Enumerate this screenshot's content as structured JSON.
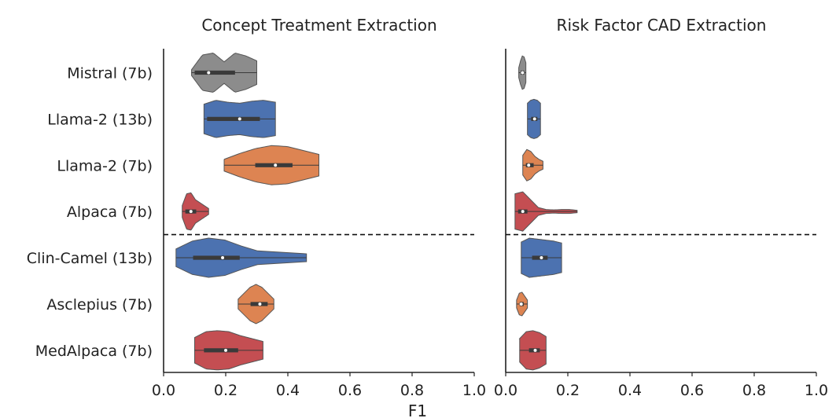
{
  "chart_data": {
    "type": "violin",
    "xlabel": "F1",
    "xlim": [
      0.0,
      1.0
    ],
    "xticks": [
      "0.0",
      "0.2",
      "0.4",
      "0.6",
      "0.8",
      "1.0"
    ],
    "categories": [
      "Mistral (7b)",
      "Llama-2 (13b)",
      "Llama-2 (7b)",
      "Alpaca (7b)",
      "Clin-Camel (13b)",
      "Asclepius (7b)",
      "MedAlpaca (7b)"
    ],
    "separator_after": "Alpaca (7b)",
    "colors": {
      "Mistral (7b)": "#8c8c8c",
      "Llama-2 (13b)": "#4c72b0",
      "Llama-2 (7b)": "#dd8452",
      "Alpaca (7b)": "#c44e52",
      "Clin-Camel (13b)": "#4c72b0",
      "Asclepius (7b)": "#dd8452",
      "MedAlpaca (7b)": "#c44e52"
    },
    "panels": [
      {
        "title": "Concept Treatment Extraction",
        "violins": [
          {
            "name": "Mistral (7b)",
            "min": 0.09,
            "max": 0.3,
            "q1": 0.1,
            "median": 0.145,
            "q3": 0.23,
            "profile": [
              0.15,
              0.9,
              1.0,
              0.55,
              1.0,
              0.85,
              0.6
            ]
          },
          {
            "name": "Llama-2 (13b)",
            "min": 0.13,
            "max": 0.36,
            "q1": 0.14,
            "median": 0.245,
            "q3": 0.31,
            "profile": [
              0.75,
              0.95,
              0.85,
              0.8,
              0.9,
              0.95,
              0.85
            ]
          },
          {
            "name": "Llama-2 (7b)",
            "min": 0.195,
            "max": 0.5,
            "q1": 0.295,
            "median": 0.36,
            "q3": 0.415,
            "profile": [
              0.3,
              0.6,
              0.85,
              1.0,
              0.95,
              0.75,
              0.55
            ]
          },
          {
            "name": "Alpaca (7b)",
            "min": 0.06,
            "max": 0.145,
            "q1": 0.07,
            "median": 0.088,
            "q3": 0.105,
            "profile": [
              0.3,
              0.9,
              0.95,
              0.6,
              0.45,
              0.3,
              0.15
            ]
          },
          {
            "name": "Clin-Camel (13b)",
            "min": 0.04,
            "max": 0.46,
            "q1": 0.095,
            "median": 0.19,
            "q3": 0.245,
            "profile": [
              0.45,
              0.85,
              1.0,
              0.9,
              0.6,
              0.35,
              0.3,
              0.25,
              0.2
            ]
          },
          {
            "name": "Asclepius (7b)",
            "min": 0.24,
            "max": 0.355,
            "q1": 0.28,
            "median": 0.31,
            "q3": 0.335,
            "profile": [
              0.25,
              0.55,
              0.85,
              1.0,
              0.85,
              0.55,
              0.25
            ]
          },
          {
            "name": "MedAlpaca (7b)",
            "min": 0.1,
            "max": 0.32,
            "q1": 0.13,
            "median": 0.2,
            "q3": 0.24,
            "profile": [
              0.65,
              0.95,
              1.0,
              0.95,
              0.75,
              0.6,
              0.45
            ]
          }
        ]
      },
      {
        "title": "Risk Factor CAD Extraction",
        "violins": [
          {
            "name": "Mistral (7b)",
            "min": 0.042,
            "max": 0.065,
            "q1": 0.048,
            "median": 0.054,
            "q3": 0.06,
            "profile": [
              0.25,
              0.6,
              0.85,
              0.8,
              0.5
            ]
          },
          {
            "name": "Llama-2 (13b)",
            "min": 0.07,
            "max": 0.112,
            "q1": 0.082,
            "median": 0.093,
            "q3": 0.102,
            "profile": [
              0.8,
              0.95,
              1.0,
              0.95,
              0.8
            ]
          },
          {
            "name": "Llama-2 (7b)",
            "min": 0.055,
            "max": 0.12,
            "q1": 0.065,
            "median": 0.074,
            "q3": 0.09,
            "profile": [
              0.5,
              0.8,
              0.7,
              0.45,
              0.3,
              0.2
            ]
          },
          {
            "name": "Alpaca (7b)",
            "min": 0.03,
            "max": 0.23,
            "q1": 0.04,
            "median": 0.055,
            "q3": 0.07,
            "profile": [
              0.9,
              1.0,
              0.6,
              0.2,
              0.1,
              0.08,
              0.1,
              0.1,
              0.06
            ]
          },
          {
            "name": "Clin-Camel (13b)",
            "min": 0.05,
            "max": 0.18,
            "q1": 0.085,
            "median": 0.115,
            "q3": 0.135,
            "profile": [
              0.8,
              1.0,
              0.95,
              0.9,
              0.85,
              0.75
            ]
          },
          {
            "name": "Asclepius (7b)",
            "min": 0.035,
            "max": 0.07,
            "q1": 0.045,
            "median": 0.05,
            "q3": 0.058,
            "profile": [
              0.2,
              0.55,
              0.6,
              0.4,
              0.2
            ]
          },
          {
            "name": "MedAlpaca (7b)",
            "min": 0.045,
            "max": 0.13,
            "q1": 0.075,
            "median": 0.095,
            "q3": 0.11,
            "profile": [
              0.6,
              0.95,
              1.0,
              0.9,
              0.7
            ]
          }
        ]
      }
    ]
  }
}
